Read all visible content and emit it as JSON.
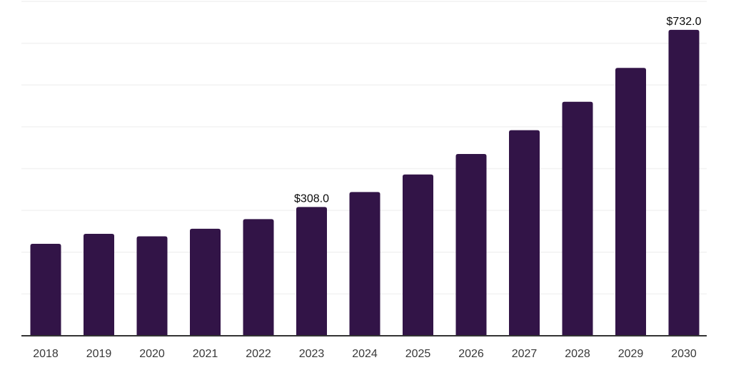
{
  "chart_data": {
    "type": "bar",
    "title": "",
    "xlabel": "",
    "ylabel": "",
    "categories": [
      "2018",
      "2019",
      "2020",
      "2021",
      "2022",
      "2023",
      "2024",
      "2025",
      "2026",
      "2027",
      "2028",
      "2029",
      "2030"
    ],
    "values": [
      220,
      244,
      238,
      256,
      279,
      308,
      344,
      386,
      435,
      492,
      560,
      641,
      732
    ],
    "data_labels": [
      {
        "category": "2023",
        "text": "$308.0"
      },
      {
        "category": "2030",
        "text": "$732.0"
      }
    ],
    "ylim": [
      0,
      800
    ],
    "gridline_step": 100,
    "grid": "horizontal",
    "y_axis_labels_visible": false,
    "legend_position": "none",
    "colors": {
      "bar": "#321447",
      "gridline": "#f2f2f2",
      "axis_line": "#333333",
      "tick_label": "#383838",
      "data_label": "#0a0a0a",
      "background": "#ffffff"
    }
  }
}
